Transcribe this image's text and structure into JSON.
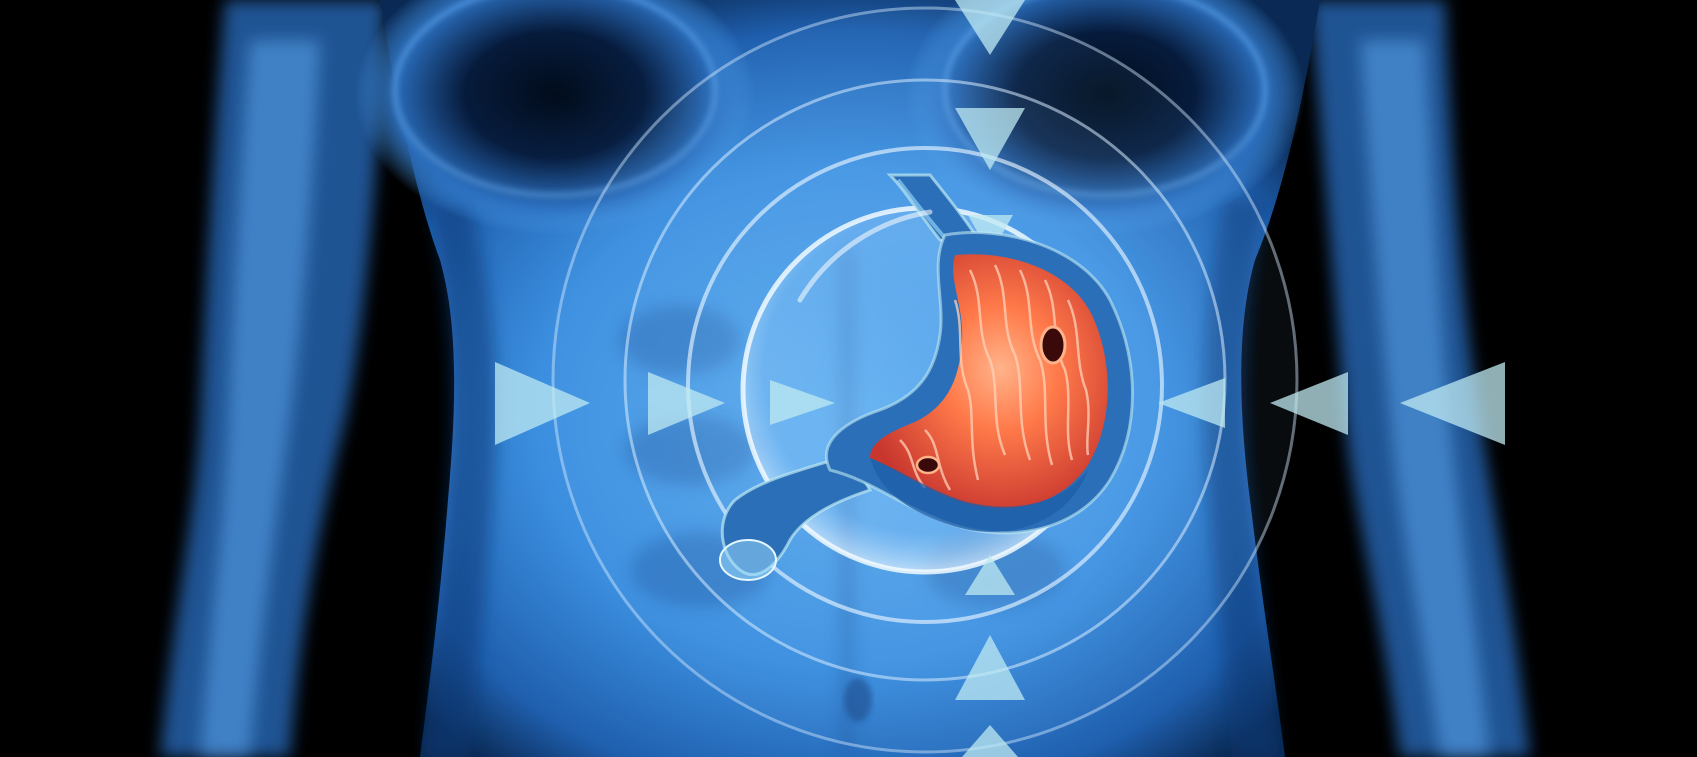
{
  "colors": {
    "background": "#000000",
    "body_glow": "#2f7fd0",
    "body_core": "#5aa9ec",
    "body_shadow": "#0a2a55",
    "ring": "#d8ecff",
    "arrow": "#bfe9f2",
    "stomach_inner": "#ff7a4a",
    "stomach_outer": "#e0483a",
    "stomach_wall": "#2a6fb8",
    "ulcer": "#3a0a0a"
  },
  "icons": {
    "torso": "torso-xray-icon",
    "stomach": "stomach-icon",
    "target_rings": "target-rings-icon",
    "pointer_arrows": "pointer-arrow-icon",
    "ulcer": "ulcer-icon"
  }
}
